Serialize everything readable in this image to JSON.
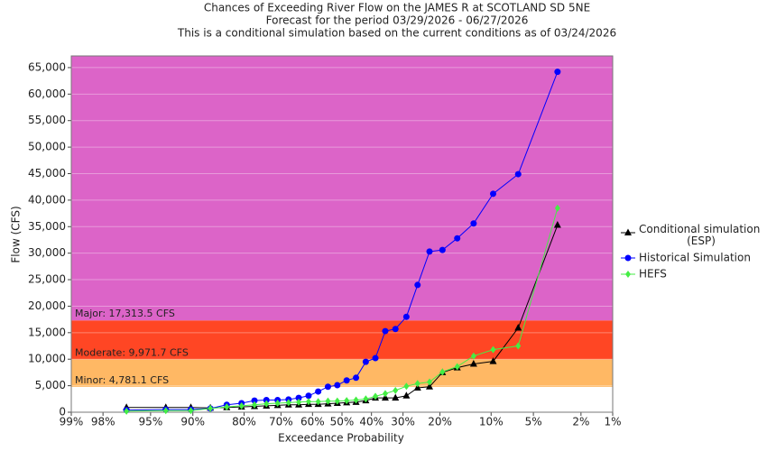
{
  "chart_data": {
    "type": "line",
    "title": "Chances of Exceeding River Flow on the JAMES R at SCOTLAND SD 5NE",
    "subtitle": "Forecast for the period 03/29/2026 - 06/27/2026",
    "note": "This is a conditional simulation based on the current conditions as of 03/24/2026",
    "xlabel": "Exceedance Probability",
    "ylabel": "Flow (CFS)",
    "xscale": "probability",
    "xlim": [
      99,
      1
    ],
    "ylim": [
      0,
      67200
    ],
    "grid": true,
    "legend": "right",
    "xticks": [
      {
        "value": 99,
        "label": "99%"
      },
      {
        "value": 98,
        "label": "98%"
      },
      {
        "value": 95,
        "label": "95%"
      },
      {
        "value": 90,
        "label": "90%"
      },
      {
        "value": 80,
        "label": "80%"
      },
      {
        "value": 70,
        "label": "70%"
      },
      {
        "value": 60,
        "label": "60%"
      },
      {
        "value": 50,
        "label": "50%"
      },
      {
        "value": 40,
        "label": "40%"
      },
      {
        "value": 30,
        "label": "30%"
      },
      {
        "value": 20,
        "label": "20%"
      },
      {
        "value": 10,
        "label": "10%"
      },
      {
        "value": 5,
        "label": "5%"
      },
      {
        "value": 2,
        "label": "2%"
      },
      {
        "value": 1,
        "label": "1%"
      }
    ],
    "yticks": [
      0,
      {
        "value": 5000,
        "label": "5,000"
      },
      {
        "value": 10000,
        "label": "10,000"
      },
      {
        "value": 15000,
        "label": "15,000"
      },
      {
        "value": 20000,
        "label": "20,000"
      },
      {
        "value": 25000,
        "label": "25,000"
      },
      {
        "value": 30000,
        "label": "30,000"
      },
      {
        "value": 35000,
        "label": "35,000"
      },
      {
        "value": 40000,
        "label": "40,000"
      },
      {
        "value": 45000,
        "label": "45,000"
      },
      {
        "value": 50000,
        "label": "50,000"
      },
      {
        "value": 55000,
        "label": "55,000"
      },
      {
        "value": 60000,
        "label": "60,000"
      },
      {
        "value": 65000,
        "label": "65,000"
      }
    ],
    "thresholds": [
      {
        "label": "Minor: 4,781.1 CFS",
        "value": 4781.1,
        "color": "#ffb864"
      },
      {
        "label": "Moderate: 9,971.7 CFS",
        "value": 9971.7,
        "color": "#ff4624"
      },
      {
        "label": "Major: 17,313.5 CFS",
        "value": 17313.5,
        "color": "#dc64c8"
      }
    ],
    "x": [
      96.8,
      93.5,
      90.3,
      87.1,
      83.9,
      80.6,
      77.4,
      74.2,
      71.0,
      67.7,
      64.5,
      61.3,
      58.1,
      54.8,
      51.6,
      48.4,
      45.2,
      41.9,
      38.7,
      35.5,
      32.3,
      29.0,
      25.8,
      22.6,
      19.4,
      16.1,
      12.9,
      9.7,
      6.5,
      3.2
    ],
    "series": [
      {
        "name": "Conditional simulation (ESP)",
        "color": "#000000",
        "marker": "triangle",
        "values": [
          900,
          900,
          900,
          800,
          900,
          1000,
          1100,
          1200,
          1300,
          1400,
          1400,
          1500,
          1500,
          1600,
          1700,
          1800,
          1900,
          2200,
          2700,
          2700,
          2700,
          3100,
          4600,
          4800,
          7500,
          8400,
          9100,
          9600,
          15900,
          35300
        ]
      },
      {
        "name": "Historical Simulation",
        "color": "#0000ff",
        "marker": "circle",
        "values": [
          400,
          500,
          500,
          700,
          1400,
          1700,
          2200,
          2300,
          2300,
          2400,
          2700,
          3100,
          3900,
          4800,
          5100,
          6000,
          6500,
          9500,
          10200,
          15300,
          15700,
          18000,
          24000,
          30300,
          30600,
          32800,
          35600,
          41200,
          44900,
          64200
        ]
      },
      {
        "name": "HEFS",
        "color": "#44ee44",
        "marker": "diamond",
        "values": [
          200,
          300,
          300,
          700,
          1000,
          1200,
          1400,
          1600,
          1700,
          1800,
          1900,
          2000,
          2000,
          2100,
          2100,
          2200,
          2300,
          2500,
          3000,
          3500,
          4100,
          4900,
          5400,
          5700,
          7600,
          8600,
          10600,
          11800,
          12500,
          38500
        ]
      }
    ]
  }
}
